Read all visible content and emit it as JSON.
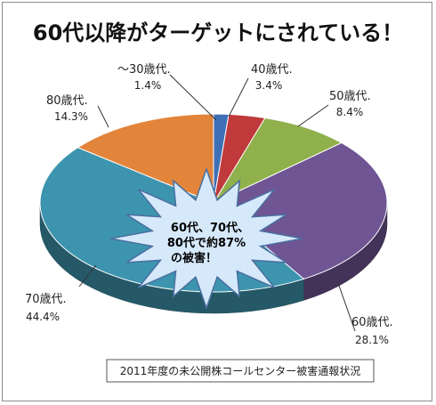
{
  "chart_data": {
    "type": "pie",
    "title": "60代以降がターゲットにされている！",
    "slices": [
      {
        "name": "～30歳代.",
        "value": 1.4,
        "label": "1.4%",
        "color": "#3f6fb5"
      },
      {
        "name": "40歳代.",
        "value": 3.4,
        "label": "3.4%",
        "color": "#c0393b"
      },
      {
        "name": "50歳代.",
        "value": 8.4,
        "label": "8.4%",
        "color": "#8fb04a"
      },
      {
        "name": "60歳代.",
        "value": 28.1,
        "label": "28.1%",
        "color": "#6f5593"
      },
      {
        "name": "70歳代.",
        "value": 44.4,
        "label": "44.4%",
        "color": "#3d94ae"
      },
      {
        "name": "80歳代.",
        "value": 14.3,
        "label": "14.3%",
        "color": "#e2843a"
      }
    ],
    "callout": [
      "60代、70代、",
      "80代で約87%",
      "の被害！"
    ],
    "source": "2011年度の未公開株コールセンター被害通報状況"
  }
}
